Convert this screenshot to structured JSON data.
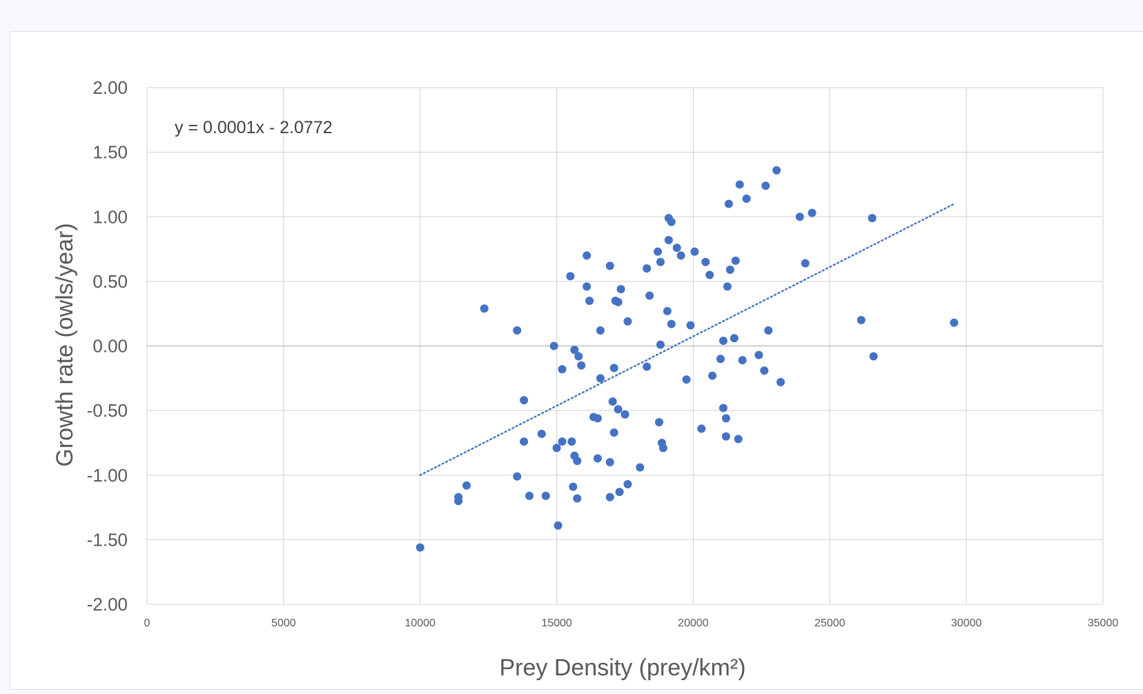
{
  "chart_data": {
    "type": "scatter",
    "title": "",
    "xlabel": "Prey Density (prey/km²)",
    "ylabel": "Growth rate (owls/year)",
    "xlim": [
      0,
      35000
    ],
    "ylim": [
      -2.0,
      2.0
    ],
    "x_ticks": [
      0,
      5000,
      10000,
      15000,
      20000,
      25000,
      30000,
      35000
    ],
    "x_tick_labels": [
      "0",
      "5000",
      "10000",
      "15000",
      "20000",
      "25000",
      "30000",
      "35000"
    ],
    "y_ticks": [
      2.0,
      1.5,
      1.0,
      0.5,
      0.0,
      -0.5,
      -1.0,
      -1.5,
      -2.0
    ],
    "y_tick_labels": [
      "2.00",
      "1.50",
      "1.00",
      "0.50",
      "0.00",
      "-0.50",
      "-1.00",
      "-1.50",
      "-2.00"
    ],
    "grid": true,
    "marker_color": "#4472c4",
    "trendline": {
      "type": "linear",
      "equation_label": "y = 0.0001x - 2.0772",
      "start": [
        10000,
        -1.0
      ],
      "end": [
        29550,
        1.1
      ],
      "style": "dotted",
      "color": "#4472c4"
    },
    "series": [
      {
        "name": "Growth rate",
        "points": [
          [
            10000,
            -1.56
          ],
          [
            11400,
            -1.17
          ],
          [
            11400,
            -1.2
          ],
          [
            11700,
            -1.08
          ],
          [
            12350,
            0.29
          ],
          [
            13550,
            0.12
          ],
          [
            13550,
            -1.01
          ],
          [
            13800,
            -0.42
          ],
          [
            13800,
            -0.74
          ],
          [
            14000,
            -1.16
          ],
          [
            14450,
            -0.68
          ],
          [
            14600,
            -1.16
          ],
          [
            14900,
            0.0
          ],
          [
            15000,
            -0.79
          ],
          [
            15050,
            -1.39
          ],
          [
            15200,
            -0.18
          ],
          [
            15200,
            -0.74
          ],
          [
            15500,
            0.54
          ],
          [
            15550,
            -0.74
          ],
          [
            15600,
            -1.09
          ],
          [
            15650,
            -0.85
          ],
          [
            15650,
            -0.03
          ],
          [
            15750,
            -0.89
          ],
          [
            15750,
            -1.18
          ],
          [
            15800,
            -0.08
          ],
          [
            15900,
            -0.15
          ],
          [
            16100,
            0.46
          ],
          [
            16100,
            0.7
          ],
          [
            16200,
            0.35
          ],
          [
            16350,
            -0.55
          ],
          [
            16500,
            -0.56
          ],
          [
            16500,
            -0.87
          ],
          [
            16600,
            0.12
          ],
          [
            16600,
            -0.25
          ],
          [
            16950,
            0.62
          ],
          [
            16950,
            -0.9
          ],
          [
            16950,
            -1.17
          ],
          [
            17050,
            -0.43
          ],
          [
            17100,
            -0.67
          ],
          [
            17100,
            -0.17
          ],
          [
            17150,
            0.35
          ],
          [
            17250,
            0.34
          ],
          [
            17250,
            -0.49
          ],
          [
            17300,
            -1.13
          ],
          [
            17350,
            0.44
          ],
          [
            17500,
            -0.53
          ],
          [
            17600,
            0.19
          ],
          [
            17600,
            -1.07
          ],
          [
            18050,
            -0.94
          ],
          [
            18300,
            0.6
          ],
          [
            18300,
            -0.16
          ],
          [
            18400,
            0.39
          ],
          [
            18700,
            0.73
          ],
          [
            18750,
            -0.59
          ],
          [
            18800,
            0.01
          ],
          [
            18800,
            0.65
          ],
          [
            18850,
            -0.75
          ],
          [
            18900,
            -0.79
          ],
          [
            19050,
            0.27
          ],
          [
            19100,
            0.99
          ],
          [
            19100,
            0.82
          ],
          [
            19200,
            0.96
          ],
          [
            19200,
            0.17
          ],
          [
            19400,
            0.76
          ],
          [
            19550,
            0.7
          ],
          [
            19750,
            -0.26
          ],
          [
            19900,
            0.16
          ],
          [
            20050,
            0.73
          ],
          [
            20300,
            -0.64
          ],
          [
            20450,
            0.65
          ],
          [
            20600,
            0.55
          ],
          [
            20700,
            -0.23
          ],
          [
            21000,
            -0.1
          ],
          [
            21100,
            -0.48
          ],
          [
            21100,
            0.04
          ],
          [
            21200,
            -0.7
          ],
          [
            21200,
            -0.56
          ],
          [
            21250,
            0.46
          ],
          [
            21300,
            1.1
          ],
          [
            21350,
            0.59
          ],
          [
            21500,
            0.06
          ],
          [
            21550,
            0.66
          ],
          [
            21650,
            -0.72
          ],
          [
            21700,
            1.25
          ],
          [
            21800,
            -0.11
          ],
          [
            21950,
            1.14
          ],
          [
            22400,
            -0.07
          ],
          [
            22600,
            -0.19
          ],
          [
            22650,
            1.24
          ],
          [
            22750,
            0.12
          ],
          [
            23050,
            1.36
          ],
          [
            23200,
            -0.28
          ],
          [
            23900,
            1.0
          ],
          [
            24100,
            0.64
          ],
          [
            24350,
            1.03
          ],
          [
            26150,
            0.2
          ],
          [
            26550,
            0.99
          ],
          [
            26600,
            -0.08
          ],
          [
            29550,
            0.18
          ]
        ]
      }
    ]
  }
}
